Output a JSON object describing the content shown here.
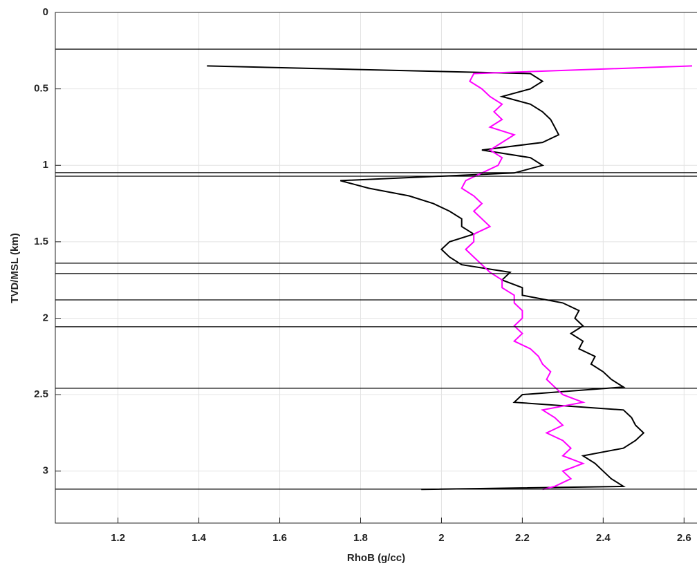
{
  "chart_data": {
    "type": "line",
    "xlabel": "RhoB (g/cc)",
    "ylabel": "TVD/MSL (km)",
    "xlim": [
      1.045,
      2.632
    ],
    "xticks": [
      {
        "value": 1.2,
        "label": "1.2"
      },
      {
        "value": 1.4,
        "label": "1.4"
      },
      {
        "value": 1.6,
        "label": "1.6"
      },
      {
        "value": 1.8,
        "label": "1.8"
      },
      2,
      {
        "value": 2.2,
        "label": "2.2"
      },
      {
        "value": 2.4,
        "label": "2.4"
      },
      {
        "value": 2.6,
        "label": "2.6"
      }
    ],
    "ylim": [
      0,
      3.34
    ],
    "yticks": [
      0,
      0.5,
      1,
      1.5,
      2,
      2.5,
      3
    ],
    "y_inverted": true,
    "grid": true,
    "horizons": [
      0.24,
      1.048,
      1.071,
      1.64,
      1.708,
      1.88,
      2.056,
      2.458,
      3.118
    ],
    "horizon_color": "#000000",
    "depth": [
      0.35,
      0.4,
      0.45,
      0.5,
      0.55,
      0.6,
      0.65,
      0.7,
      0.75,
      0.8,
      0.85,
      0.9,
      0.95,
      1.0,
      1.05,
      1.1,
      1.15,
      1.2,
      1.25,
      1.3,
      1.35,
      1.4,
      1.45,
      1.5,
      1.55,
      1.6,
      1.65,
      1.7,
      1.75,
      1.8,
      1.85,
      1.9,
      1.95,
      2.0,
      2.05,
      2.1,
      2.15,
      2.2,
      2.25,
      2.3,
      2.35,
      2.4,
      2.45,
      2.5,
      2.55,
      2.6,
      2.65,
      2.7,
      2.75,
      2.8,
      2.85,
      2.9,
      2.95,
      3.0,
      3.05,
      3.1,
      3.12
    ],
    "series": [
      {
        "color": "#000000",
        "values": [
          1.42,
          2.22,
          2.25,
          2.22,
          2.15,
          2.22,
          2.25,
          2.27,
          2.28,
          2.29,
          2.25,
          2.1,
          2.22,
          2.25,
          2.18,
          1.75,
          1.82,
          1.92,
          1.98,
          2.02,
          2.05,
          2.05,
          2.08,
          2.02,
          2.0,
          2.02,
          2.05,
          2.17,
          2.15,
          2.2,
          2.2,
          2.3,
          2.34,
          2.33,
          2.35,
          2.32,
          2.35,
          2.34,
          2.38,
          2.37,
          2.4,
          2.42,
          2.45,
          2.2,
          2.18,
          2.45,
          2.47,
          2.48,
          2.5,
          2.48,
          2.45,
          2.35,
          2.38,
          2.4,
          2.42,
          2.45,
          1.95
        ]
      },
      {
        "color": "#ff00ff",
        "values": [
          2.62,
          2.08,
          2.07,
          2.1,
          2.12,
          2.15,
          2.13,
          2.15,
          2.12,
          2.18,
          2.15,
          2.12,
          2.15,
          2.14,
          2.1,
          2.06,
          2.05,
          2.08,
          2.1,
          2.08,
          2.1,
          2.12,
          2.08,
          2.08,
          2.06,
          2.08,
          2.1,
          2.12,
          2.15,
          2.15,
          2.18,
          2.18,
          2.2,
          2.2,
          2.18,
          2.2,
          2.18,
          2.22,
          2.24,
          2.25,
          2.27,
          2.26,
          2.28,
          2.3,
          2.35,
          2.25,
          2.28,
          2.3,
          2.26,
          2.3,
          2.32,
          2.3,
          2.35,
          2.3,
          2.32,
          2.28,
          2.25
        ]
      }
    ]
  }
}
